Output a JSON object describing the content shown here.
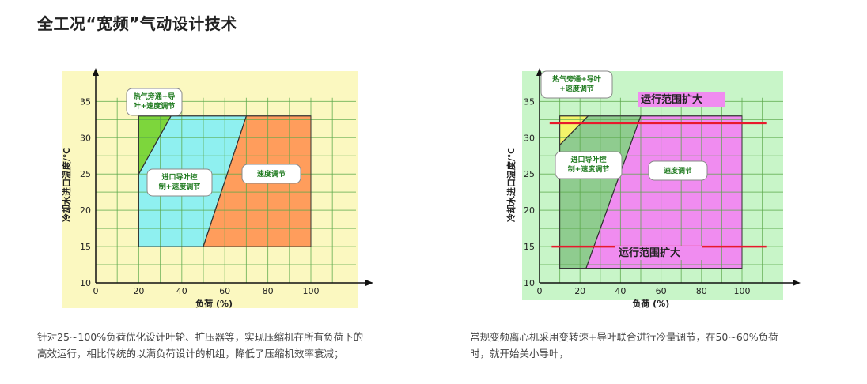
{
  "page": {
    "title": "全工况“宽频”气动设计技术"
  },
  "left": {
    "caption_line1": "针对25~100%负荷优化设计叶轮、扩压器等，实现压缩机在所有负荷下的",
    "caption_line2": "高效运行，相比传统的以满负荷设计的机组，降低了压缩机效率衰减；"
  },
  "right": {
    "caption_line1": "常规变频离心机采用变转速+导叶联合进行冷量调节，在50~60%负荷",
    "caption_line2": "时，就开始关小导叶，"
  },
  "chart_data": [
    {
      "type": "area",
      "xlabel": "负荷 (%)",
      "ylabel": "冷却水进口温度/℃",
      "xlim": [
        0,
        120
      ],
      "ylim": [
        10,
        37
      ],
      "x_ticks": [
        0,
        20,
        40,
        60,
        80,
        100
      ],
      "y_ticks": [
        10,
        15,
        20,
        25,
        30,
        35
      ],
      "grid": true,
      "colors": {
        "background": "#fbf8c0",
        "plot_bg": "#f8f7b4",
        "grid": "#5aa84a",
        "hot_gas": "#7dd63c",
        "igv": "#8ff0f0",
        "speed": "#ff9d5c"
      },
      "regions": [
        {
          "name": "热气旁通+导叶+速度调节",
          "polygon": [
            [
              20,
              25
            ],
            [
              20,
              33
            ],
            [
              35,
              33
            ]
          ],
          "label_lines": [
            "热气旁通+导",
            "叶+速度调节"
          ]
        },
        {
          "name": "进口导叶控制+速度调节",
          "polygon": [
            [
              20,
              15
            ],
            [
              20,
              25
            ],
            [
              35,
              33
            ],
            [
              70,
              33
            ],
            [
              50,
              15
            ]
          ],
          "label_lines": [
            "进口导叶控",
            "制+速度调节"
          ]
        },
        {
          "name": "速度调节",
          "polygon": [
            [
              50,
              15
            ],
            [
              70,
              33
            ],
            [
              100,
              33
            ],
            [
              100,
              15
            ]
          ],
          "label_lines": [
            "速度调节"
          ]
        }
      ]
    },
    {
      "type": "area",
      "xlabel": "负荷 (%)",
      "ylabel": "冷却水进口温度/℃",
      "xlim": [
        0,
        120
      ],
      "ylim": [
        10,
        37
      ],
      "x_ticks": [
        0,
        20,
        40,
        60,
        80,
        100
      ],
      "y_ticks": [
        10,
        15,
        20,
        25,
        30,
        35
      ],
      "grid": true,
      "colors": {
        "background": "#c8f5c8",
        "grid": "#5aa84a",
        "hot_gas": "#f4f46a",
        "igv": "#8fcc8f",
        "speed": "#f08cf0",
        "line": "#e8192c"
      },
      "regions": [
        {
          "name": "热气旁通+导叶+速度调节",
          "polygon": [
            [
              10,
              29
            ],
            [
              10,
              33
            ],
            [
              24,
              33
            ]
          ],
          "label_lines": [
            "热气旁通+导叶",
            "+速度调节"
          ]
        },
        {
          "name": "进口导叶控制+速度调节",
          "polygon": [
            [
              10,
              12
            ],
            [
              10,
              29
            ],
            [
              24,
              33
            ],
            [
              50,
              33
            ],
            [
              23,
              12
            ]
          ],
          "label_lines": [
            "进口导叶控",
            "制+速度调节"
          ]
        },
        {
          "name": "速度调节",
          "polygon": [
            [
              23,
              12
            ],
            [
              50,
              33
            ],
            [
              100,
              33
            ],
            [
              100,
              12
            ]
          ],
          "label_lines": [
            "速度调节"
          ]
        }
      ],
      "lines": [
        {
          "y": 32,
          "x_range": [
            5,
            112
          ]
        },
        {
          "y": 15,
          "x_range": [
            6,
            112
          ]
        }
      ],
      "annotations": [
        "运行范围扩大",
        "运行范围扩大"
      ]
    }
  ]
}
